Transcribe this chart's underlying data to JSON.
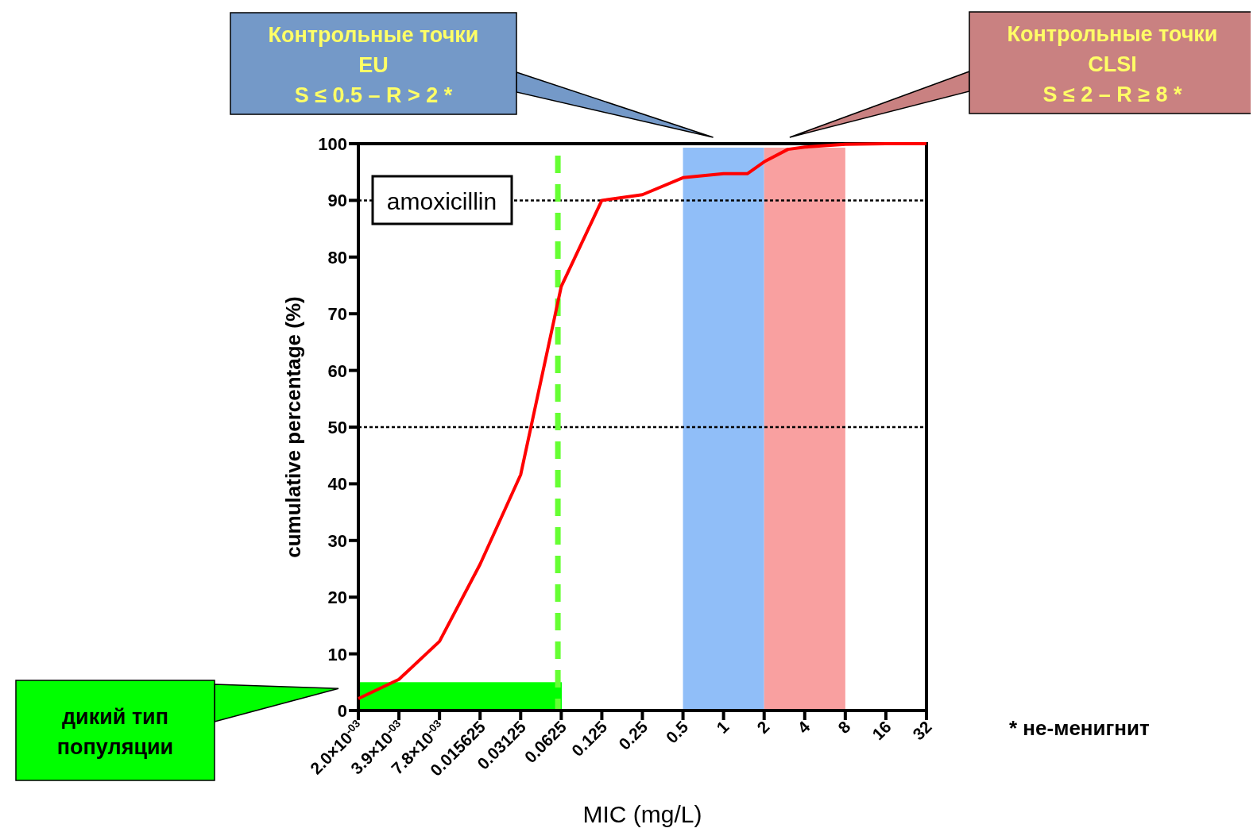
{
  "chart_data": {
    "type": "line",
    "xlabel": "MIC (mg/L)",
    "ylabel": "cumulative percentage (%)",
    "log": "x",
    "marker": "none",
    "line_style": "solid",
    "xlim": [
      0.001953125,
      32
    ],
    "xticks": [
      {
        "value": 0.001953125,
        "label": "2.0×10$^{-03}$"
      },
      {
        "value": 0.00390625,
        "label": "3.9×10$^{-03}$"
      },
      {
        "value": 0.0078125,
        "label": "7.8×10$^{-03}$"
      },
      0.015625,
      0.03125,
      0.0625,
      0.125,
      0.25,
      0.5,
      1,
      2,
      4,
      8,
      16,
      32
    ],
    "ylim": [
      0,
      100
    ],
    "yticks": [
      0,
      10,
      20,
      30,
      40,
      50,
      60,
      70,
      80,
      90,
      100
    ],
    "series": [
      {
        "color": "#ff0000",
        "x": [
          0.001953125,
          0.00390625,
          0.0078125,
          0.015625,
          0.03125,
          0.0625,
          0.125,
          0.25,
          0.5,
          1,
          1.5,
          2,
          3,
          4,
          8,
          16,
          32
        ],
        "values": [
          2.1,
          5.5,
          12.2,
          25.8,
          41.6,
          74.8,
          90,
          91,
          94,
          94.7,
          94.7,
          96.8,
          99,
          99.4,
          99.9,
          100,
          100
        ]
      }
    ],
    "ref_lines": [
      {
        "axis": "y",
        "value": 90,
        "color": "#000000",
        "line_style": "dotted"
      },
      {
        "axis": "y",
        "value": 50,
        "color": "#000000",
        "line_style": "dotted"
      },
      {
        "axis": "x",
        "value": 0.059,
        "color": "#66ff33",
        "line_style": "dashed"
      }
    ],
    "bands": [
      {
        "axis": "x",
        "from": 0.5,
        "to": 2,
        "color": "#90bef8"
      },
      {
        "axis": "x",
        "from": 2,
        "to": 8,
        "color": "#f9a0a0"
      },
      {
        "axis": "y",
        "from": 0,
        "to": 5,
        "color": "#00ff00"
      }
    ],
    "annotations": [
      "amoxicillin",
      "* не-менигнит",
      "Контрольные точки\nEU\nS ≤ 0.5 – R > 2 *",
      "Контрольные точки\nCLSI\nS ≤ 2 – R ≥ 8 *",
      "дикий тип\nпопуляции"
    ]
  }
}
